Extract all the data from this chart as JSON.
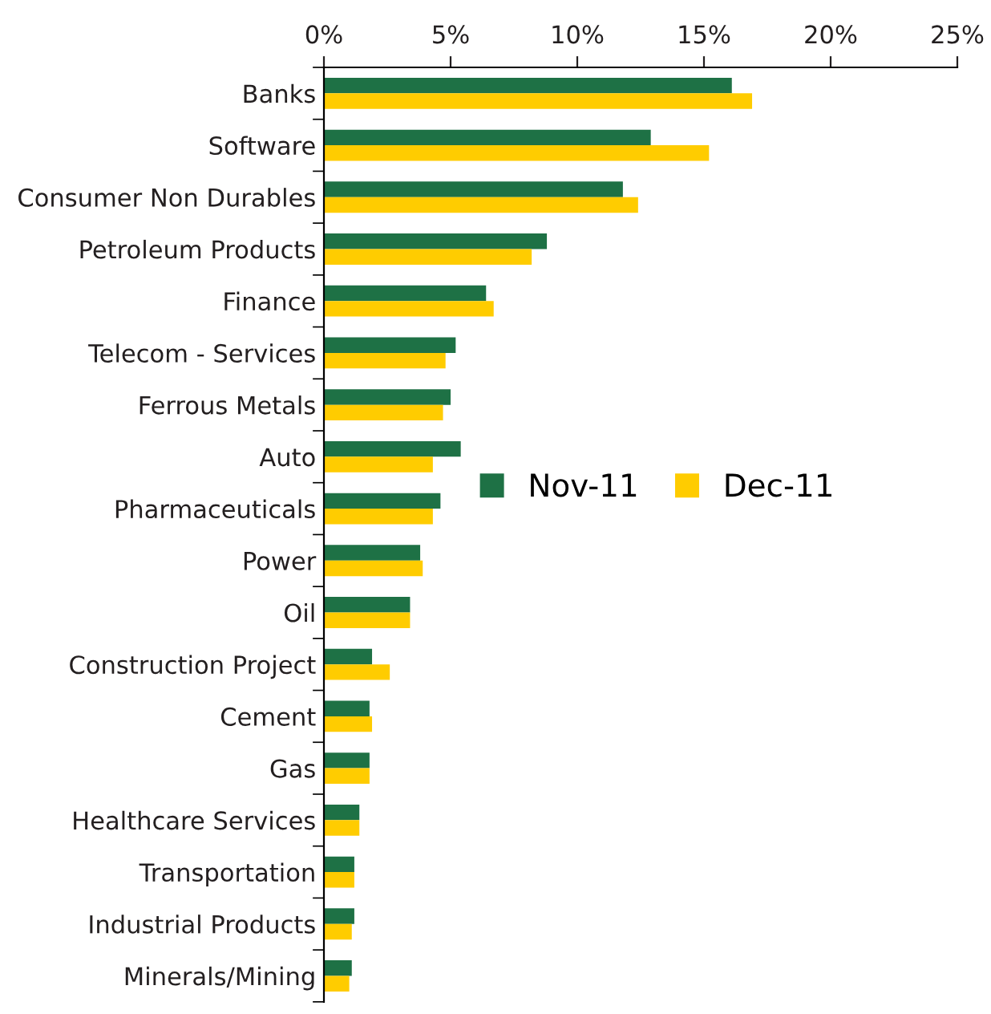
{
  "chart_data": {
    "type": "bar",
    "orientation": "horizontal",
    "categories": [
      "Banks",
      "Software",
      "Consumer Non Durables",
      "Petroleum Products",
      "Finance",
      "Telecom - Services",
      "Ferrous Metals",
      "Auto",
      "Pharmaceuticals",
      "Power",
      "Oil",
      "Construction Project",
      "Cement",
      "Gas",
      "Healthcare Services",
      "Transportation",
      "Industrial Products",
      "Minerals/Mining"
    ],
    "series": [
      {
        "name": "Nov-11",
        "color": "#1e7145",
        "values": [
          16.1,
          12.9,
          11.8,
          8.8,
          6.4,
          5.2,
          5.0,
          5.4,
          4.6,
          3.8,
          3.4,
          1.9,
          1.8,
          1.8,
          1.4,
          1.2,
          1.2,
          1.1
        ]
      },
      {
        "name": "Dec-11",
        "color": "#ffcc00",
        "values": [
          16.9,
          15.2,
          12.4,
          8.2,
          6.7,
          4.8,
          4.7,
          4.3,
          4.3,
          3.9,
          3.4,
          2.6,
          1.9,
          1.8,
          1.4,
          1.2,
          1.1,
          1.0
        ]
      }
    ],
    "xlim": [
      0,
      25
    ],
    "xticks": [
      {
        "value": 0,
        "label": "0%"
      },
      {
        "value": 5,
        "label": "5%"
      },
      {
        "value": 10,
        "label": "10%"
      },
      {
        "value": 15,
        "label": "15%"
      },
      {
        "value": 20,
        "label": "20%"
      },
      {
        "value": 25,
        "label": "25%"
      }
    ],
    "grid": false,
    "legend": "right"
  }
}
